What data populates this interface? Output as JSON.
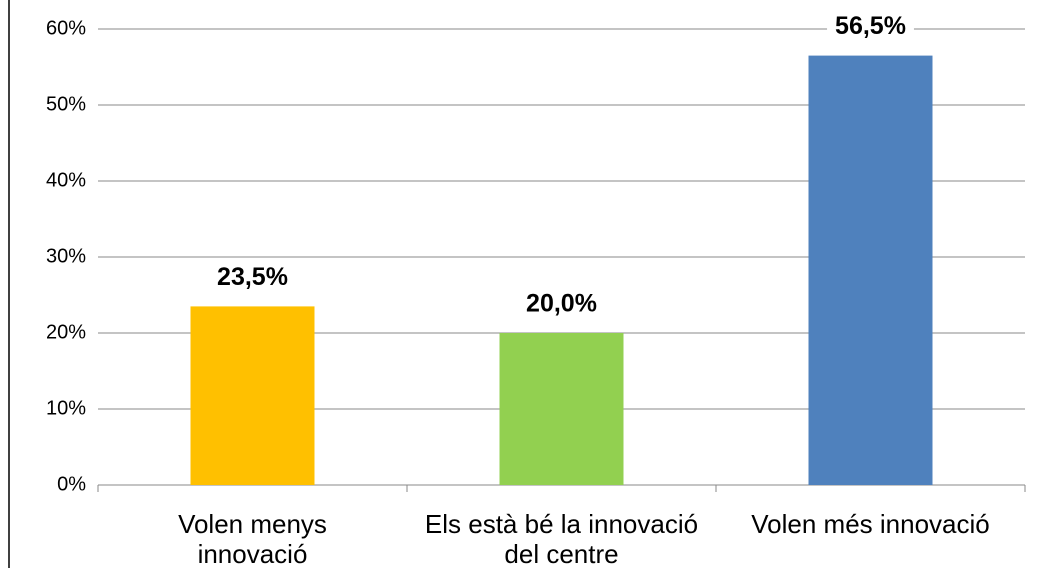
{
  "chart_data": {
    "type": "bar",
    "categories": [
      "Volen menys innovació",
      "Els està bé la innovació del centre",
      "Volen més  innovació"
    ],
    "values": [
      23.5,
      20.0,
      56.5
    ],
    "value_labels": [
      "23,5%",
      "20,0%",
      "56,5%"
    ],
    "colors": [
      "#ffc000",
      "#92d050",
      "#4f81bd"
    ],
    "ylim": [
      0,
      60
    ],
    "yticks": [
      {
        "value": 0,
        "label": "0%"
      },
      {
        "value": 10,
        "label": "10%"
      },
      {
        "value": 20,
        "label": "20%"
      },
      {
        "value": 30,
        "label": "30%"
      },
      {
        "value": 40,
        "label": "40%"
      },
      {
        "value": 50,
        "label": "50%"
      },
      {
        "value": 60,
        "label": "60%"
      }
    ],
    "grid": true
  }
}
